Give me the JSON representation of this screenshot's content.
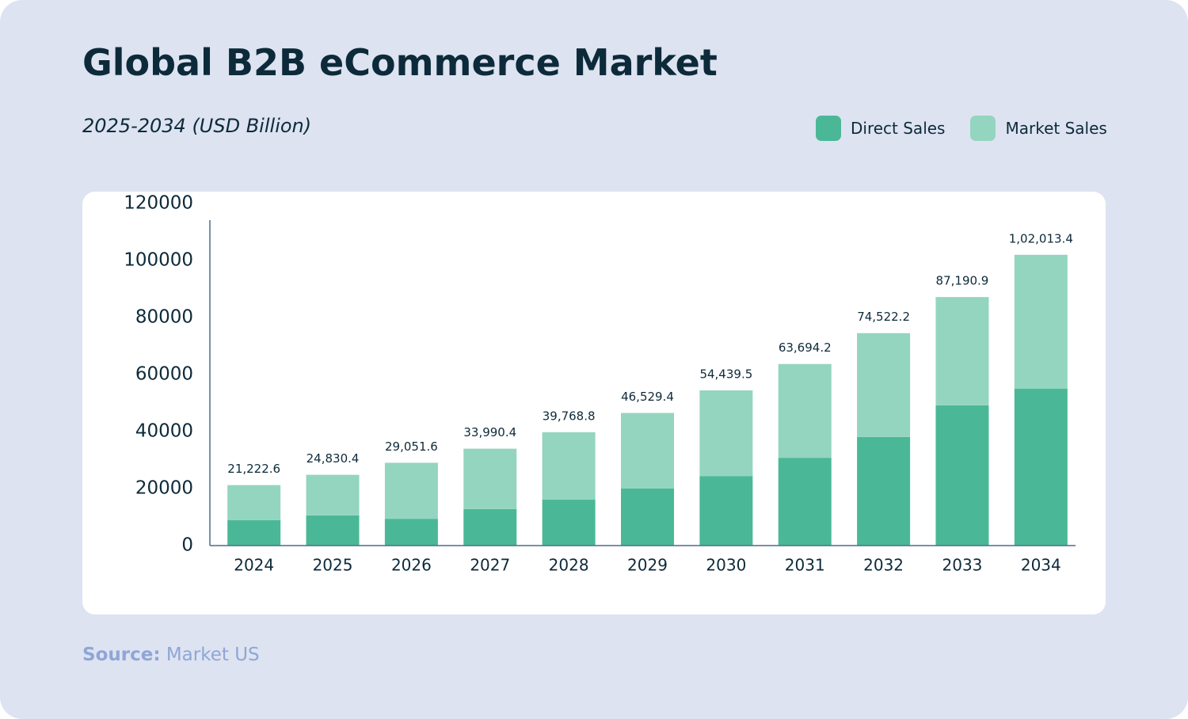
{
  "chart_data": {
    "type": "stacked_bar",
    "title": "Global B2B eCommerce Market",
    "subtitle": "2025-2034 (USD Billion)",
    "categories": [
      "2024",
      "2025",
      "2026",
      "2027",
      "2028",
      "2029",
      "2030",
      "2031",
      "2032",
      "2033",
      "2034"
    ],
    "series": [
      {
        "name": "Direct Sales",
        "color": "#4ab896",
        "values": [
          8900,
          10600,
          9400,
          12800,
          16100,
          20000,
          24400,
          30800,
          38100,
          49200,
          55000
        ]
      },
      {
        "name": "Market Sales",
        "color": "#94d5bf",
        "values": [
          12322.6,
          14230.4,
          19651.6,
          21190.4,
          23668.8,
          26529.4,
          30039.5,
          32894.2,
          36422.2,
          37990.9,
          47013.4
        ]
      }
    ],
    "totals": [
      21222.6,
      24830.4,
      29051.6,
      33990.4,
      39768.8,
      46529.4,
      54439.5,
      63694.2,
      74522.2,
      87190.9,
      102013.4
    ],
    "total_labels": [
      "21,222.6",
      "24,830.4",
      "29,051.6",
      "33,990.4",
      "39,768.8",
      "46,529.4",
      "54,439.5",
      "63,694.2",
      "74,522.2",
      "87,190.9",
      "1,02,013.4"
    ],
    "ylim": [
      0,
      120000
    ],
    "yticks": [
      0,
      20000,
      40000,
      60000,
      80000,
      100000,
      120000
    ],
    "source_label": "Source:",
    "source": "Market US"
  }
}
